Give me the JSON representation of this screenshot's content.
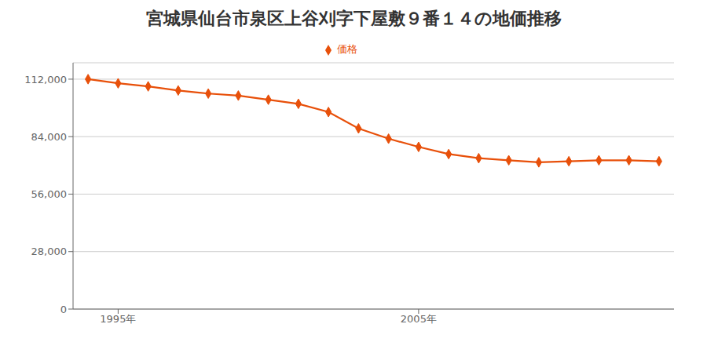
{
  "chart_data": {
    "type": "line",
    "title": "宮城県仙台市泉区上谷刈字下屋敷９番１４の地価推移",
    "x": [
      1994,
      1995,
      1996,
      1997,
      1998,
      1999,
      2000,
      2001,
      2002,
      2003,
      2004,
      2005,
      2006,
      2007,
      2008,
      2009,
      2010,
      2011,
      2012,
      2013
    ],
    "series": [
      {
        "name": "価格",
        "color": "#e8500a",
        "marker": "diamond",
        "values": [
          112000,
          110000,
          108500,
          106500,
          105000,
          104000,
          102000,
          100000,
          96000,
          88000,
          83000,
          79000,
          75500,
          73500,
          72500,
          71500,
          72000,
          72500,
          72500,
          72000
        ]
      }
    ],
    "xlim": [
      1993.5,
      2013.5
    ],
    "xticks": [
      {
        "value": 1995,
        "label": "1995年"
      },
      {
        "value": 2005,
        "label": "2005年"
      }
    ],
    "ylim": [
      0,
      120000
    ],
    "yticks": [
      {
        "value": 0,
        "label": "0"
      },
      {
        "value": 28000,
        "label": "28,000"
      },
      {
        "value": 56000,
        "label": "56,000"
      },
      {
        "value": 84000,
        "label": "84,000"
      },
      {
        "value": 112000,
        "label": "112,000"
      }
    ],
    "grid": true,
    "legend": "top"
  }
}
